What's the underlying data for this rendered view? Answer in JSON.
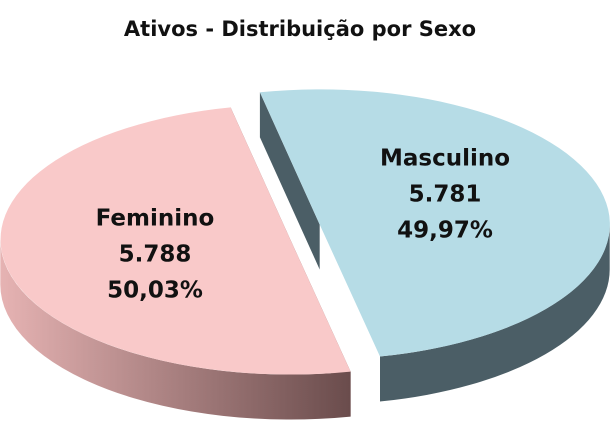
{
  "chart_data": {
    "type": "pie3d",
    "title": "Ativos - Distribuição por Sexo",
    "categories": [
      "Feminino",
      "Masculino"
    ],
    "values": [
      50.03,
      49.97
    ],
    "value_labels": [
      "50,03%",
      "49,97%"
    ],
    "counts": [
      5788,
      5781
    ],
    "count_labels": [
      "5.788",
      "5.781"
    ],
    "colors": [
      "#f9c9c9",
      "#b6dce6"
    ]
  }
}
